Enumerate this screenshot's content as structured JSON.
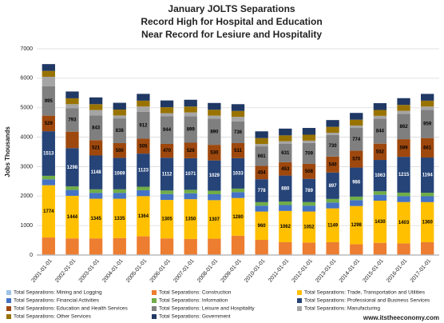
{
  "chart_data": {
    "type": "stacked_bar",
    "title": "January JOLTS Separations",
    "subtitle": "Record High for Hospital and Education",
    "subtitle2": "Near Record for Lesiure and Hospitality",
    "y_label": "Jobs Thousands",
    "source": "www.itstheeconomy.com",
    "ylim": [
      0,
      7000
    ],
    "yticks": [
      0,
      1000,
      2000,
      3000,
      4000,
      5000,
      6000,
      7000
    ],
    "grid": true,
    "categories": [
      "2001-01-01",
      "2002-01-01",
      "2003-01-01",
      "2004-01-01",
      "2005-01-01",
      "2006-01-01",
      "2007-01-01",
      "2008-01-01",
      "2009-01-01",
      "2010-01-01",
      "2011-01-01",
      "2012-01-01",
      "2013-01-01",
      "2014-01-01",
      "2015-01-01",
      "2016-01-01",
      "2017-01-01"
    ],
    "series": [
      {
        "name": "Total Separations: Mining and Logging",
        "color": "#9dc3e6",
        "values": [
          15,
          15,
          15,
          15,
          15,
          15,
          15,
          15,
          15,
          15,
          15,
          15,
          15,
          15,
          15,
          15,
          15
        ]
      },
      {
        "name": "Total Separations: Construction",
        "color": "#ed7d31",
        "values": [
          580,
          550,
          550,
          560,
          620,
          550,
          530,
          540,
          640,
          500,
          420,
          410,
          420,
          350,
          400,
          380,
          420
        ]
      },
      {
        "name": "Total Separations: Trade, Transportation and Utilities",
        "color": "#ffc000",
        "values": [
          1774,
          1444,
          1345,
          1335,
          1364,
          1305,
          1350,
          1307,
          1280,
          960,
          1062,
          1052,
          1149,
          1298,
          1430,
          1403,
          1360
        ],
        "value_labels": [
          "1774",
          "1444",
          "1345",
          "1335",
          "1364",
          "1305",
          "1350",
          "1307",
          "1280",
          "960",
          "1062",
          "1052",
          "1149",
          "1298",
          "1430",
          "1403",
          "1360"
        ]
      },
      {
        "name": "Total Separations: Financial Activities",
        "color": "#4472c4",
        "values": [
          200,
          200,
          200,
          200,
          200,
          200,
          200,
          200,
          200,
          200,
          200,
          200,
          200,
          200,
          200,
          200,
          200
        ]
      },
      {
        "name": "Total Separations: Information",
        "color": "#70ad47",
        "values": [
          120,
          120,
          120,
          120,
          120,
          120,
          120,
          120,
          120,
          120,
          120,
          120,
          120,
          120,
          120,
          120,
          120
        ]
      },
      {
        "name": "Total Separations: Professional and Business Services",
        "color": "#264478",
        "values": [
          1513,
          1298,
          1148,
          1069,
          1123,
          1112,
          1071,
          1029,
          1033,
          778,
          880,
          789,
          897,
          986,
          1063,
          1215,
          1194
        ],
        "value_labels": [
          "1513",
          "1298",
          "1148",
          "1069",
          "1123",
          "1112",
          "1071",
          "1029",
          "1033",
          "778",
          "880",
          "789",
          "897",
          "986",
          "1063",
          "1215",
          "1194"
        ]
      },
      {
        "name": "Total Separations: Education and Health Services",
        "color": "#9e480e",
        "values": [
          529,
          560,
          521,
          500,
          505,
          470,
          526,
          530,
          511,
          454,
          453,
          508,
          540,
          570,
          552,
          599,
          661
        ],
        "value_labels": [
          "529",
          null,
          "521",
          "500",
          "505",
          "470",
          "526",
          "530",
          "511",
          "454",
          "453",
          "508",
          "540",
          "570",
          "552",
          "599",
          "661"
        ]
      },
      {
        "name": "Total Separations: Leisure and Hospitality",
        "color": "#7f7f7f",
        "values": [
          995,
          793,
          843,
          838,
          912,
          944,
          899,
          890,
          736,
          661,
          631,
          709,
          730,
          774,
          844,
          862,
          959
        ],
        "value_labels": [
          "995",
          "793",
          "843",
          "838",
          "912",
          "944",
          "899",
          "890",
          "736",
          "661",
          "631",
          "709",
          "730",
          "774",
          "844",
          "862",
          "959"
        ]
      },
      {
        "name": "Total Separations: Manufacturing",
        "color": "#a5a5a5",
        "values": [
          324,
          140,
          178,
          100,
          181,
          100,
          129,
          100,
          155,
          80,
          80,
          80,
          80,
          80,
          100,
          100,
          110
        ]
      },
      {
        "name": "Total Separations: Other Services",
        "color": "#997300",
        "values": [
          200,
          200,
          200,
          200,
          200,
          200,
          200,
          200,
          200,
          200,
          200,
          200,
          200,
          200,
          200,
          200,
          200
        ]
      },
      {
        "name": "Total Separations: Government",
        "color": "#203864",
        "values": [
          230,
          230,
          230,
          230,
          230,
          230,
          230,
          230,
          230,
          230,
          230,
          230,
          230,
          230,
          230,
          230,
          230
        ]
      }
    ]
  }
}
